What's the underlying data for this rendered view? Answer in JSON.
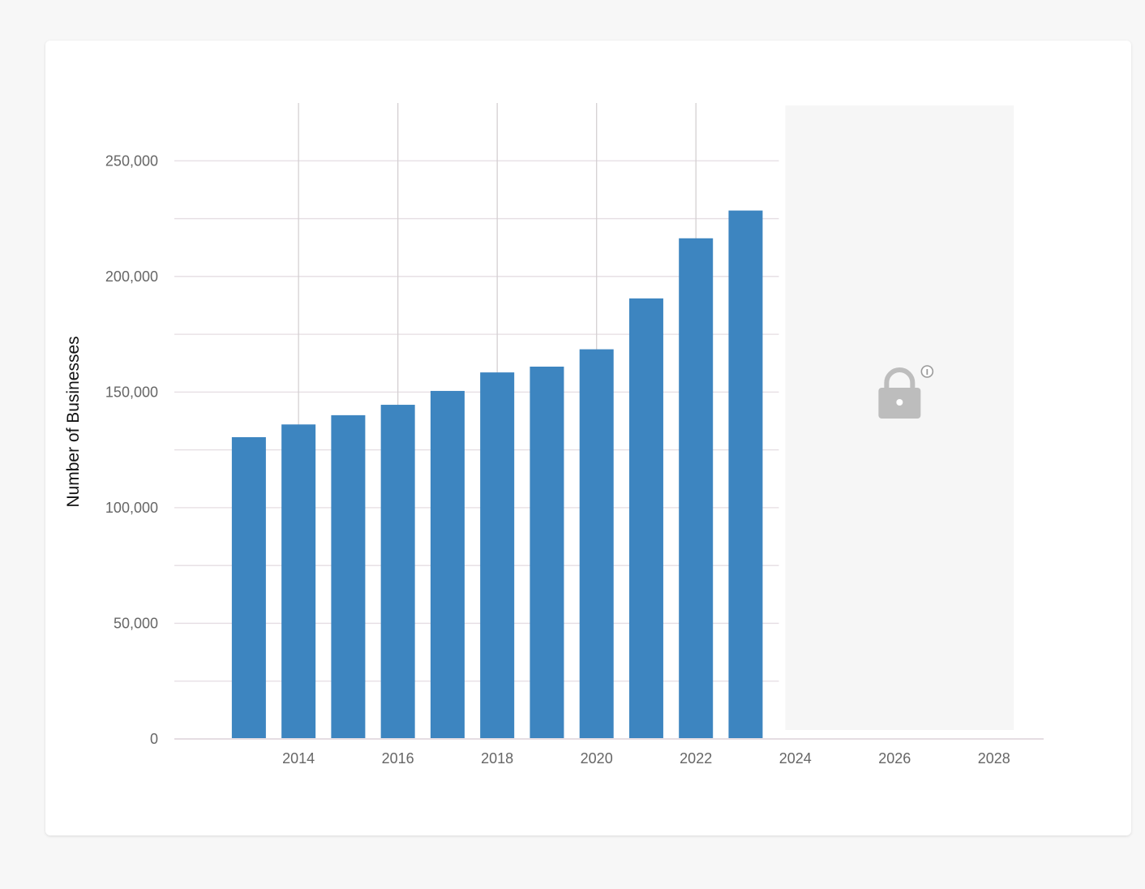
{
  "colors": {
    "bar": "#3d85c0",
    "grid": "#e5dde2",
    "vgrid": "#d4d0d2",
    "locked_bg": "#f6f6f6",
    "lock_icon": "#bdbdbd",
    "tick_text": "#666666"
  },
  "locked_region": {
    "x_start": 2023.8,
    "x_end": 2028.4,
    "icon": "lock-icon",
    "info_icon": "info-icon"
  },
  "chart_data": {
    "type": "bar",
    "title": "",
    "xlabel": "",
    "ylabel": "Number of Businesses",
    "x": [
      2013,
      2014,
      2015,
      2016,
      2017,
      2018,
      2019,
      2020,
      2021,
      2022,
      2023
    ],
    "values": [
      130500,
      136000,
      140000,
      144500,
      150500,
      158500,
      161000,
      168500,
      190500,
      216500,
      228500
    ],
    "ylim": [
      0,
      275000
    ],
    "xlim": [
      2011.5,
      2029
    ],
    "y_ticks": [
      0,
      50000,
      100000,
      150000,
      200000,
      250000
    ],
    "y_tick_labels": [
      "0",
      "50,000",
      "100,000",
      "150,000",
      "200,000",
      "250,000"
    ],
    "x_ticks": [
      2014,
      2016,
      2018,
      2020,
      2022,
      2024,
      2026,
      2028
    ],
    "x_tick_labels": [
      "2014",
      "2016",
      "2018",
      "2020",
      "2022",
      "2024",
      "2026",
      "2028"
    ],
    "grid": true,
    "legend": "none"
  }
}
